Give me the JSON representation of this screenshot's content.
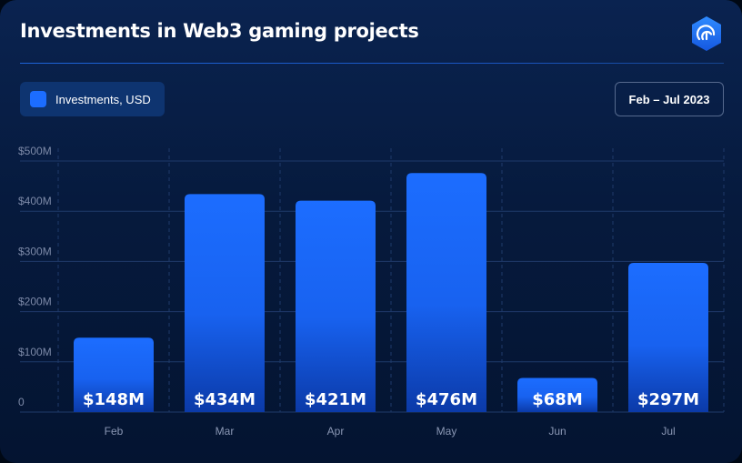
{
  "title": "Investments in Web3 gaming projects",
  "logo_icon": "fingerprint-hexagon-icon",
  "legend": {
    "label": "Investments, USD",
    "color": "#1c6dff"
  },
  "date_range": "Feb – Jul 2023",
  "colors": {
    "bar_top": "#1c6dff",
    "bar_bottom": "#0b3aa8",
    "grid": "#1f3a6a",
    "accent": "#1c6dff"
  },
  "chart_data": {
    "type": "bar",
    "categories": [
      "Feb",
      "Mar",
      "Apr",
      "May",
      "Jun",
      "Jul"
    ],
    "series": [
      {
        "name": "Investments, USD",
        "values": [
          148,
          434,
          421,
          476,
          68,
          297
        ]
      }
    ],
    "data_labels": [
      "$148M",
      "$434M",
      "$421M",
      "$476M",
      "$68M",
      "$297M"
    ],
    "y_ticks": [
      {
        "value": 0,
        "label": "0"
      },
      {
        "value": 100,
        "label": "$100M"
      },
      {
        "value": 200,
        "label": "$200M"
      },
      {
        "value": 300,
        "label": "$300M"
      },
      {
        "value": 400,
        "label": "$400M"
      },
      {
        "value": 500,
        "label": "$500M"
      }
    ],
    "ylim": [
      0,
      500
    ],
    "unit": "$M",
    "grid": true,
    "legend_position": "top-left"
  }
}
